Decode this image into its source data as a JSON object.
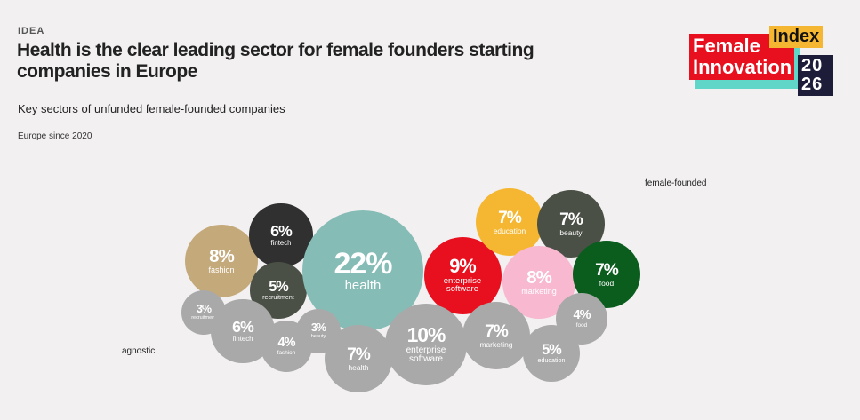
{
  "header": {
    "kicker": "IDEA",
    "logo": {
      "word1": "Female",
      "word2": "Index",
      "word3": "Innovation",
      "year": "2026"
    }
  },
  "chart_data": {
    "type": "bubble",
    "title": "Health is the clear leading sector for female founders starting companies in Europe",
    "subtitle": "Key sectors of unfunded female-founded companies",
    "note": "Europe since 2020",
    "series": [
      {
        "name": "female-founded",
        "categories": [
          "fashion",
          "fintech",
          "recruitment",
          "health",
          "enterprise software",
          "education",
          "beauty",
          "marketing",
          "food"
        ],
        "values": [
          8,
          6,
          5,
          22,
          9,
          7,
          7,
          8,
          7
        ],
        "value_labels": [
          "8%",
          "6%",
          "5%",
          "22%",
          "9%",
          "7%",
          "7%",
          "8%",
          "7%"
        ],
        "colors": [
          "#c4a97a",
          "#303030",
          "#4a5045",
          "#86bcb6",
          "#e8101f",
          "#f5b731",
          "#4a5045",
          "#f7b8d0",
          "#0b5d1e"
        ]
      },
      {
        "name": "agnostic",
        "color": "#a9a9a9",
        "categories": [
          "recruitment",
          "fintech",
          "fashion",
          "beauty",
          "health",
          "enterprise software",
          "marketing",
          "food",
          "education"
        ],
        "values": [
          3,
          6,
          4,
          3,
          7,
          10,
          7,
          4,
          5
        ],
        "value_labels": [
          "3%",
          "6%",
          "4%",
          "3%",
          "7%",
          "10%",
          "7%",
          "4%",
          "5%"
        ]
      }
    ]
  }
}
